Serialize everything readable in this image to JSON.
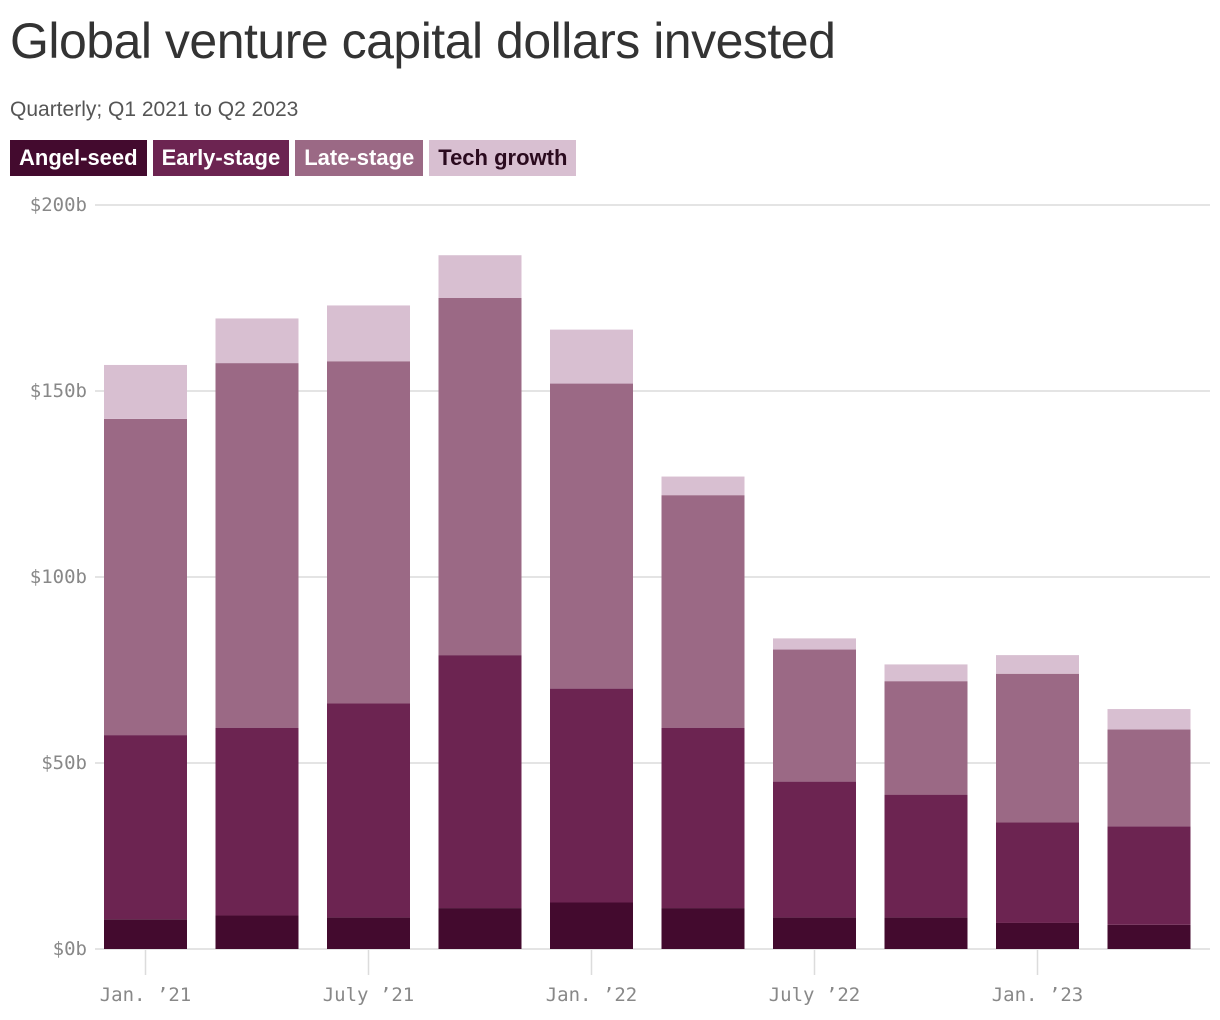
{
  "chart_data": {
    "type": "bar",
    "stacked": true,
    "title": "Global venture capital dollars invested",
    "subtitle": "Quarterly; Q1 2021 to Q2 2023",
    "categories": [
      "Q1 2021",
      "Q2 2021",
      "Q3 2021",
      "Q4 2021",
      "Q1 2022",
      "Q2 2022",
      "Q3 2022",
      "Q4 2022",
      "Q1 2023",
      "Q2 2023"
    ],
    "series": [
      {
        "name": "Angel-seed",
        "color": "#430a2e",
        "text_color": "#ffffff",
        "values": [
          8,
          9,
          8.5,
          11,
          12.5,
          11,
          8.5,
          8.5,
          7,
          6.5
        ]
      },
      {
        "name": "Early-stage",
        "color": "#6c2451",
        "text_color": "#ffffff",
        "values": [
          49.5,
          50.5,
          57.5,
          68,
          57.5,
          48.5,
          36.5,
          33,
          27,
          26.5
        ]
      },
      {
        "name": "Late-stage",
        "color": "#9b6985",
        "text_color": "#ffffff",
        "values": [
          85,
          98,
          92,
          96,
          82,
          62.5,
          35.5,
          30.5,
          40,
          26
        ]
      },
      {
        "name": "Tech growth",
        "color": "#d8bfd1",
        "text_color": "#2a0a1e",
        "values": [
          14.5,
          12,
          15,
          11.5,
          14.5,
          5,
          3,
          4.5,
          5,
          5.5
        ]
      }
    ],
    "y_ticks": [
      {
        "value": 0,
        "label": "$0b"
      },
      {
        "value": 50,
        "label": "$50b"
      },
      {
        "value": 100,
        "label": "$100b"
      },
      {
        "value": 150,
        "label": "$150b"
      },
      {
        "value": 200,
        "label": "$200b"
      }
    ],
    "x_ticks": [
      {
        "index": 0,
        "label": "Jan. ’21"
      },
      {
        "index": 2,
        "label": "July ’21"
      },
      {
        "index": 4,
        "label": "Jan. ’22"
      },
      {
        "index": 6,
        "label": "July ’22"
      },
      {
        "index": 8,
        "label": "Jan. ’23"
      }
    ],
    "ylim": [
      0,
      200
    ],
    "grid": true,
    "legend_position": "top-left"
  }
}
